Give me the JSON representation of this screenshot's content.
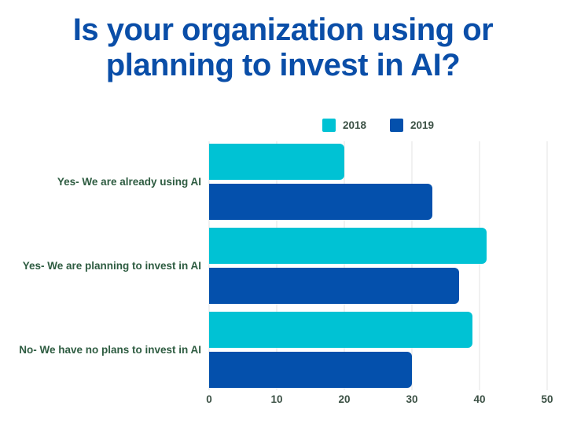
{
  "title": {
    "line1": "Is your organization using or",
    "line2": "planning to invest in AI?"
  },
  "legend": [
    {
      "label": "2018",
      "color": "#00C2D4"
    },
    {
      "label": "2019",
      "color": "#0450AC"
    }
  ],
  "chart_data": {
    "type": "bar",
    "orientation": "horizontal",
    "title": "Is your organization using or planning to invest in AI?",
    "categories": [
      "Yes- We are already using AI",
      "Yes- We are planning to invest in AI",
      "No- We have no plans to invest in AI"
    ],
    "series": [
      {
        "name": "2018",
        "color": "#00C2D4",
        "values": [
          20,
          41,
          39
        ]
      },
      {
        "name": "2019",
        "color": "#0450AC",
        "values": [
          33,
          37,
          30
        ]
      }
    ],
    "xlabel": "",
    "ylabel": "",
    "xlim": [
      0,
      50
    ],
    "xticks": [
      "0",
      "10",
      "20",
      "30",
      "40",
      "50"
    ],
    "grid": true,
    "legend_position": "top-center"
  },
  "colors": {
    "title": "#0A4EA8",
    "category_label": "#2E5C41",
    "tick_label": "#3C5145",
    "legend_label": "#3C5145",
    "gridline": "#E3E3E3",
    "background": "#FFFFFF"
  }
}
